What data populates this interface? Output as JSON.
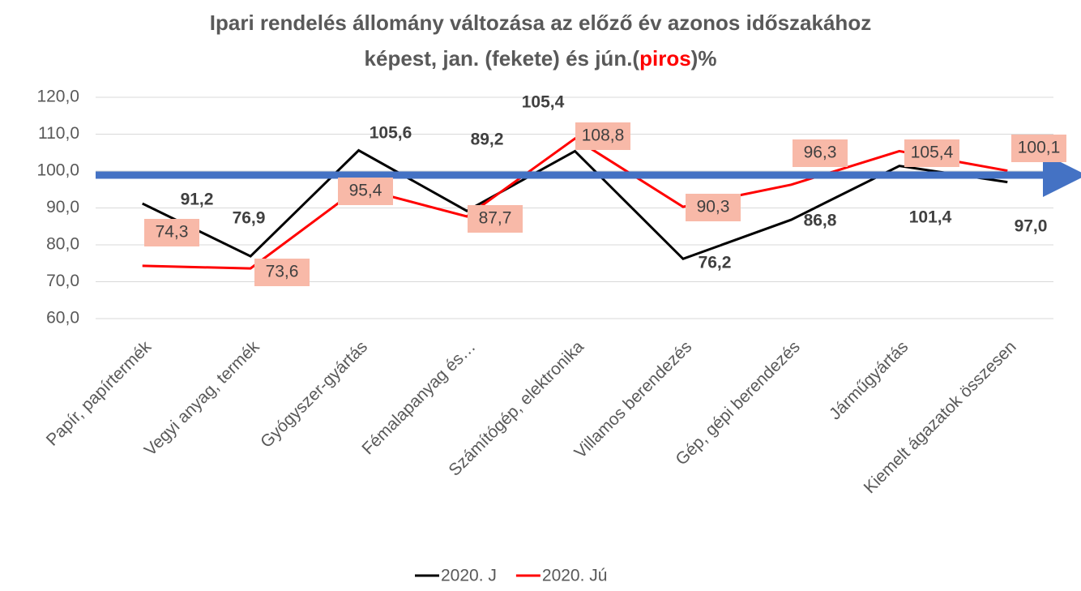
{
  "chart_data": {
    "type": "line",
    "title": {
      "line1": "Ipari rendelés állomány változása az  előző év azonos időszakához",
      "line2": [
        "képest, jan. (fekete) és jún.(",
        "piros",
        ")%"
      ]
    },
    "categories": [
      "Papír, papírtermék",
      "Vegyi anyag, termék",
      "Gyógyszer-gyártás",
      "Fémalapanyag és…",
      "Számítógép, elektronika",
      "Villamos berendezés",
      "Gép, gépi berendezés",
      "Járműgyártás",
      "Kiemelt ágazatok összesen"
    ],
    "series": [
      {
        "name": "2020. J",
        "color": "#000000",
        "values": [
          91.2,
          76.9,
          105.6,
          89.2,
          105.4,
          76.2,
          86.8,
          101.4,
          97.0
        ],
        "value_labels": [
          "91,2",
          "76,9",
          "105,6",
          "89,2",
          "105,4",
          "76,2",
          "86,8",
          "101,4",
          "97,0"
        ]
      },
      {
        "name": "2020. Jú",
        "color": "#ff0000",
        "values": [
          74.3,
          73.6,
          95.4,
          87.7,
          108.8,
          90.3,
          96.3,
          105.4,
          100.1
        ],
        "value_labels": [
          "74,3",
          "73,6",
          "95,4",
          "87,7",
          "108,8",
          "90,3",
          "96,3",
          "105,4",
          "100,1"
        ]
      }
    ],
    "ylim": [
      60,
      120
    ],
    "yticks": [
      {
        "value": 60,
        "label": "60,0"
      },
      {
        "value": 70,
        "label": "70,0"
      },
      {
        "value": 80,
        "label": "80,0"
      },
      {
        "value": 90,
        "label": "90,0"
      },
      {
        "value": 100,
        "label": "100,0"
      },
      {
        "value": 110,
        "label": "110,0"
      },
      {
        "value": 120,
        "label": "120,0"
      }
    ],
    "grid": true
  }
}
